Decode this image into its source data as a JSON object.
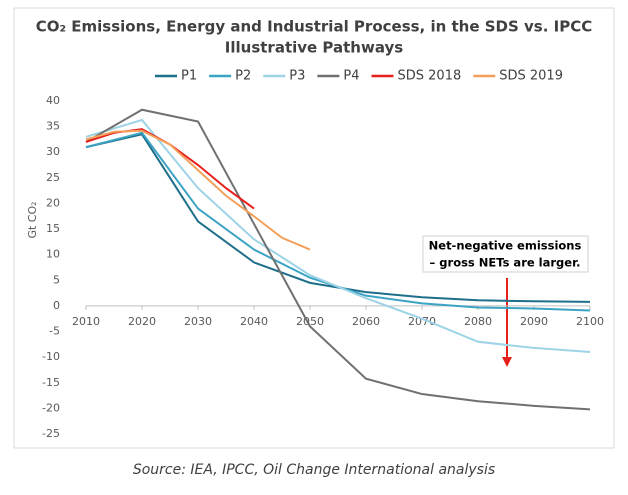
{
  "chart_data": {
    "type": "line",
    "title": [
      "CO₂ Emissions, Energy and Industrial Process, in the SDS vs. IPCC",
      "Illustrative Pathways"
    ],
    "y_label": "Gt CO₂",
    "xlim": [
      2010,
      2100
    ],
    "xticks": [
      2010,
      2020,
      2030,
      2040,
      2050,
      2060,
      2070,
      2080,
      2090,
      2100
    ],
    "ylim": [
      -25,
      40
    ],
    "yticks": [
      -25,
      -20,
      -15,
      -10,
      -5,
      0,
      5,
      10,
      15,
      20,
      25,
      30,
      35,
      40
    ],
    "grid": false,
    "legend": "top",
    "series": [
      {
        "name": "P1",
        "color": "#1f6f8b",
        "x": [
          2010,
          2020,
          2030,
          2040,
          2050,
          2060,
          2070,
          2080,
          2090,
          2100
        ],
        "values": [
          31,
          33.5,
          16.5,
          8.5,
          4.5,
          2.7,
          1.7,
          1.1,
          0.9,
          0.8
        ]
      },
      {
        "name": "P2",
        "color": "#3ba3c4",
        "x": [
          2010,
          2020,
          2030,
          2040,
          2050,
          2060,
          2070,
          2080,
          2090,
          2100
        ],
        "values": [
          31,
          33.8,
          19,
          11,
          5.5,
          2,
          0.5,
          -0.3,
          -0.5,
          -0.9
        ]
      },
      {
        "name": "P3",
        "color": "#9dd3e6",
        "x": [
          2010,
          2020,
          2030,
          2040,
          2050,
          2060,
          2070,
          2080,
          2090,
          2100
        ],
        "values": [
          33,
          36.3,
          23,
          13,
          6,
          1.5,
          -2.5,
          -7,
          -8.2,
          -9
        ]
      },
      {
        "name": "P4",
        "color": "#707070",
        "x": [
          2010,
          2020,
          2030,
          2040,
          2050,
          2060,
          2070,
          2080,
          2090,
          2100
        ],
        "values": [
          32,
          38.3,
          36,
          16,
          -4,
          -14.2,
          -17.2,
          -18.6,
          -19.5,
          -20.2
        ]
      },
      {
        "name": "SDS 2018",
        "color": "#e8201b",
        "x": [
          2010,
          2015,
          2020,
          2025,
          2030,
          2035,
          2040
        ],
        "values": [
          32,
          33.8,
          34.5,
          31.5,
          27.5,
          23,
          19
        ]
      },
      {
        "name": "SDS 2019",
        "color": "#f4a05a",
        "x": [
          2010,
          2015,
          2020,
          2025,
          2030,
          2035,
          2040,
          2045,
          2050
        ],
        "values": [
          32.5,
          34,
          34.2,
          31.5,
          26.5,
          21.5,
          17.5,
          13.3,
          11
        ]
      }
    ],
    "annotation": [
      "Net-negative emissions",
      "– gross NETs are larger."
    ],
    "source": "Source: IEA, IPCC, Oil Change International analysis"
  }
}
